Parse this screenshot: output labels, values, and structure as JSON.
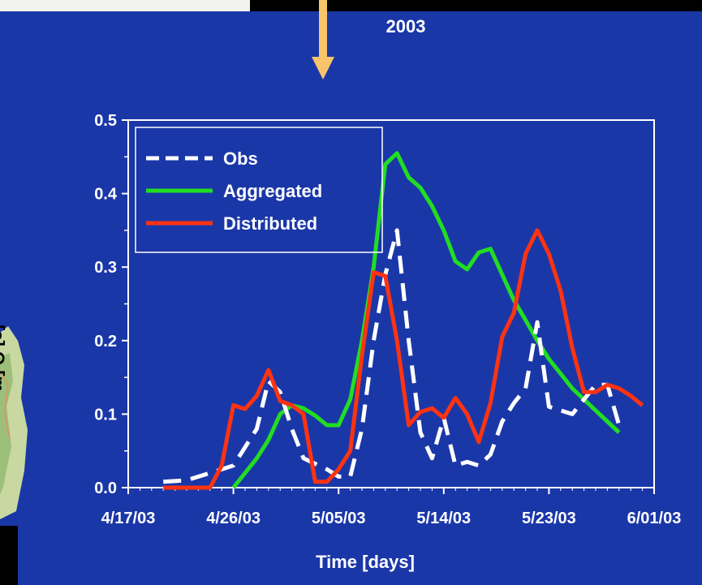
{
  "slide": {
    "year": "2003",
    "y_axis_fragment": "[s] Q [m"
  },
  "colors": {
    "background": "#1a37a8",
    "arrow": "#f7c46a",
    "obs": "#ffffff",
    "aggregated": "#22dd22",
    "distributed": "#ff3311"
  },
  "chart_data": {
    "type": "line",
    "title": "",
    "xlabel": "Time [days]",
    "ylabel": "",
    "xlim": [
      "4/17/03",
      "6/01/03"
    ],
    "ylim": [
      0.0,
      0.5
    ],
    "x_ticks": [
      "4/17/03",
      "4/26/03",
      "5/05/03",
      "5/14/03",
      "5/23/03",
      "6/01/03"
    ],
    "y_ticks": [
      "0.0",
      "0.1",
      "0.2",
      "0.3",
      "0.4",
      "0.5"
    ],
    "legend_position": "top-left",
    "grid": false,
    "series": [
      {
        "name": "Obs",
        "color": "#ffffff",
        "dash": true,
        "points": [
          [
            "4/20/03",
            0.008
          ],
          [
            "4/22/03",
            0.01
          ],
          [
            "4/24/03",
            0.02
          ],
          [
            "4/26/03",
            0.03
          ],
          [
            "4/28/03",
            0.08
          ],
          [
            "4/29/03",
            0.145
          ],
          [
            "4/30/03",
            0.13
          ],
          [
            "5/01/03",
            0.08
          ],
          [
            "5/02/03",
            0.04
          ],
          [
            "5/04/03",
            0.025
          ],
          [
            "5/05/03",
            0.015
          ],
          [
            "5/06/03",
            0.015
          ],
          [
            "5/07/03",
            0.08
          ],
          [
            "5/08/03",
            0.2
          ],
          [
            "5/09/03",
            0.29
          ],
          [
            "5/10/03",
            0.35
          ],
          [
            "5/11/03",
            0.2
          ],
          [
            "5/12/03",
            0.075
          ],
          [
            "5/13/03",
            0.04
          ],
          [
            "5/14/03",
            0.095
          ],
          [
            "5/15/03",
            0.03
          ],
          [
            "5/16/03",
            0.035
          ],
          [
            "5/17/03",
            0.03
          ],
          [
            "5/18/03",
            0.045
          ],
          [
            "5/19/03",
            0.09
          ],
          [
            "5/20/03",
            0.115
          ],
          [
            "5/21/03",
            0.135
          ],
          [
            "5/22/03",
            0.225
          ],
          [
            "5/23/03",
            0.11
          ],
          [
            "5/24/03",
            0.105
          ],
          [
            "5/25/03",
            0.1
          ],
          [
            "5/26/03",
            0.12
          ],
          [
            "5/27/03",
            0.14
          ],
          [
            "5/28/03",
            0.14
          ],
          [
            "5/29/03",
            0.085
          ]
        ]
      },
      {
        "name": "Aggregated",
        "color": "#22dd22",
        "dash": false,
        "points": [
          [
            "4/26/03",
            0.0
          ],
          [
            "4/27/03",
            0.02
          ],
          [
            "4/28/03",
            0.04
          ],
          [
            "4/29/03",
            0.065
          ],
          [
            "4/30/03",
            0.1
          ],
          [
            "5/01/03",
            0.112
          ],
          [
            "5/02/03",
            0.108
          ],
          [
            "5/03/03",
            0.098
          ],
          [
            "5/04/03",
            0.085
          ],
          [
            "5/05/03",
            0.085
          ],
          [
            "5/06/03",
            0.12
          ],
          [
            "5/07/03",
            0.2
          ],
          [
            "5/08/03",
            0.3
          ],
          [
            "5/09/03",
            0.44
          ],
          [
            "5/10/03",
            0.455
          ],
          [
            "5/11/03",
            0.422
          ],
          [
            "5/12/03",
            0.408
          ],
          [
            "5/13/03",
            0.383
          ],
          [
            "5/14/03",
            0.35
          ],
          [
            "5/15/03",
            0.308
          ],
          [
            "5/16/03",
            0.297
          ],
          [
            "5/17/03",
            0.32
          ],
          [
            "5/18/03",
            0.325
          ],
          [
            "5/19/03",
            0.29
          ],
          [
            "5/20/03",
            0.255
          ],
          [
            "5/21/03",
            0.228
          ],
          [
            "5/22/03",
            0.2
          ],
          [
            "5/23/03",
            0.175
          ],
          [
            "5/24/03",
            0.155
          ],
          [
            "5/25/03",
            0.135
          ],
          [
            "5/26/03",
            0.12
          ],
          [
            "5/27/03",
            0.105
          ],
          [
            "5/28/03",
            0.09
          ],
          [
            "5/29/03",
            0.075
          ]
        ]
      },
      {
        "name": "Distributed",
        "color": "#ff3311",
        "dash": false,
        "points": [
          [
            "4/20/03",
            0.0
          ],
          [
            "4/21/03",
            0.0
          ],
          [
            "4/22/03",
            0.0
          ],
          [
            "4/23/03",
            0.0
          ],
          [
            "4/24/03",
            0.0
          ],
          [
            "4/25/03",
            0.03
          ],
          [
            "4/26/03",
            0.112
          ],
          [
            "4/27/03",
            0.107
          ],
          [
            "4/28/03",
            0.125
          ],
          [
            "4/29/03",
            0.16
          ],
          [
            "4/30/03",
            0.118
          ],
          [
            "5/01/03",
            0.112
          ],
          [
            "5/02/03",
            0.1
          ],
          [
            "5/03/03",
            0.008
          ],
          [
            "5/04/03",
            0.008
          ],
          [
            "5/05/03",
            0.025
          ],
          [
            "5/06/03",
            0.05
          ],
          [
            "5/07/03",
            0.18
          ],
          [
            "5/08/03",
            0.293
          ],
          [
            "5/09/03",
            0.288
          ],
          [
            "5/10/03",
            0.2
          ],
          [
            "5/11/03",
            0.085
          ],
          [
            "5/12/03",
            0.103
          ],
          [
            "5/13/03",
            0.108
          ],
          [
            "5/14/03",
            0.095
          ],
          [
            "5/15/03",
            0.122
          ],
          [
            "5/16/03",
            0.1
          ],
          [
            "5/17/03",
            0.062
          ],
          [
            "5/18/03",
            0.115
          ],
          [
            "5/19/03",
            0.205
          ],
          [
            "5/20/03",
            0.238
          ],
          [
            "5/21/03",
            0.318
          ],
          [
            "5/22/03",
            0.35
          ],
          [
            "5/23/03",
            0.318
          ],
          [
            "5/24/03",
            0.268
          ],
          [
            "5/25/03",
            0.19
          ],
          [
            "5/26/03",
            0.13
          ],
          [
            "5/27/03",
            0.13
          ],
          [
            "5/28/03",
            0.14
          ],
          [
            "5/29/03",
            0.135
          ],
          [
            "5/30/03",
            0.125
          ],
          [
            "5/31/03",
            0.112
          ]
        ]
      }
    ]
  }
}
